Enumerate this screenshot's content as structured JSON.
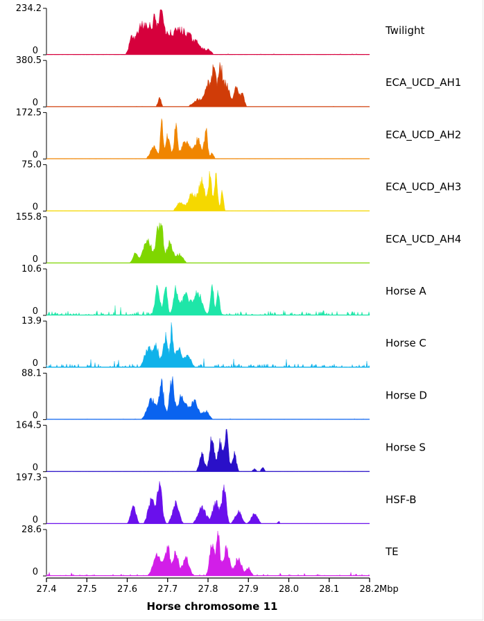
{
  "chart_data": {
    "type": "area",
    "title": "",
    "xlabel": "Horse chromosome 11",
    "x_unit": "Mbp",
    "xlim": [
      27.4,
      28.2
    ],
    "x_ticks": [
      27.4,
      27.5,
      27.6,
      27.7,
      27.8,
      27.9,
      28.0,
      28.1,
      28.2
    ],
    "x_tick_labels": [
      "27.4",
      "27.5",
      "27.6",
      "27.7",
      "27.8",
      "27.9",
      "28.0",
      "28.1",
      "28.2"
    ],
    "tracks": [
      {
        "name": "Twilight",
        "ymax_label": "234.2",
        "ymin_label": "0",
        "ymax": 234.2,
        "color": "#d6003c",
        "peaks": [
          [
            27.61,
            0.006,
            0.35
          ],
          [
            27.63,
            0.01,
            0.5
          ],
          [
            27.65,
            0.012,
            0.6
          ],
          [
            27.67,
            0.008,
            0.7
          ],
          [
            27.685,
            0.005,
            0.98
          ],
          [
            27.7,
            0.01,
            0.45
          ],
          [
            27.725,
            0.012,
            0.55
          ],
          [
            27.75,
            0.012,
            0.45
          ],
          [
            27.775,
            0.01,
            0.25
          ],
          [
            27.8,
            0.008,
            0.12
          ]
        ],
        "noise": 0.01
      },
      {
        "name": "ECA_UCD_AH1",
        "ymax_label": "380.5",
        "ymin_label": "0",
        "ymax": 380.5,
        "color": "#d03c08",
        "peaks": [
          [
            27.68,
            0.004,
            0.22
          ],
          [
            27.775,
            0.012,
            0.18
          ],
          [
            27.8,
            0.008,
            0.55
          ],
          [
            27.815,
            0.005,
            0.85
          ],
          [
            27.83,
            0.005,
            0.98
          ],
          [
            27.845,
            0.008,
            0.55
          ],
          [
            27.87,
            0.006,
            0.45
          ],
          [
            27.885,
            0.005,
            0.3
          ],
          [
            28.085,
            0.004,
            0.03
          ]
        ],
        "noise": 0.006
      },
      {
        "name": "ECA_UCD_AH2",
        "ymax_label": "172.5",
        "ymin_label": "0",
        "ymax": 172.5,
        "color": "#f08500",
        "peaks": [
          [
            27.665,
            0.008,
            0.3
          ],
          [
            27.685,
            0.003,
            0.95
          ],
          [
            27.7,
            0.006,
            0.55
          ],
          [
            27.72,
            0.004,
            0.8
          ],
          [
            27.745,
            0.01,
            0.45
          ],
          [
            27.775,
            0.008,
            0.5
          ],
          [
            27.795,
            0.004,
            0.7
          ],
          [
            27.81,
            0.004,
            0.15
          ]
        ],
        "noise": 0.006
      },
      {
        "name": "ECA_UCD_AH3",
        "ymax_label": "75.0",
        "ymin_label": "0",
        "ymax": 75.0,
        "color": "#f5d800",
        "peaks": [
          [
            27.73,
            0.008,
            0.2
          ],
          [
            27.76,
            0.01,
            0.4
          ],
          [
            27.785,
            0.008,
            0.7
          ],
          [
            27.805,
            0.004,
            0.95
          ],
          [
            27.82,
            0.004,
            0.85
          ],
          [
            27.835,
            0.003,
            0.55
          ]
        ],
        "noise": 0.006
      },
      {
        "name": "ECA_UCD_AH4",
        "ymax_label": "155.8",
        "ymin_label": "0",
        "ymax": 155.8,
        "color": "#7fd600",
        "peaks": [
          [
            27.62,
            0.006,
            0.25
          ],
          [
            27.65,
            0.01,
            0.6
          ],
          [
            27.675,
            0.005,
            0.75
          ],
          [
            27.685,
            0.004,
            0.95
          ],
          [
            27.705,
            0.008,
            0.5
          ],
          [
            27.73,
            0.008,
            0.22
          ]
        ],
        "noise": 0.006
      },
      {
        "name": "Horse A",
        "ymax_label": "10.6",
        "ymin_label": "0",
        "ymax": 10.6,
        "color": "#1ee6a8",
        "peaks": [
          [
            27.675,
            0.006,
            0.7
          ],
          [
            27.695,
            0.004,
            0.8
          ],
          [
            27.72,
            0.006,
            0.65
          ],
          [
            27.745,
            0.01,
            0.5
          ],
          [
            27.775,
            0.01,
            0.55
          ],
          [
            27.81,
            0.004,
            0.75
          ],
          [
            27.825,
            0.004,
            0.55
          ]
        ],
        "noise": 0.09
      },
      {
        "name": "Horse C",
        "ymax_label": "13.9",
        "ymin_label": "0",
        "ymax": 13.9,
        "color": "#10b2ea",
        "peaks": [
          [
            27.65,
            0.008,
            0.45
          ],
          [
            27.67,
            0.008,
            0.55
          ],
          [
            27.695,
            0.006,
            0.75
          ],
          [
            27.71,
            0.003,
            0.95
          ],
          [
            27.725,
            0.008,
            0.5
          ],
          [
            27.75,
            0.008,
            0.3
          ]
        ],
        "noise": 0.08
      },
      {
        "name": "Horse D",
        "ymax_label": "88.1",
        "ymin_label": "0",
        "ymax": 88.1,
        "color": "#0a63ef",
        "peaks": [
          [
            27.66,
            0.01,
            0.5
          ],
          [
            27.685,
            0.006,
            0.85
          ],
          [
            27.71,
            0.006,
            0.95
          ],
          [
            27.735,
            0.01,
            0.6
          ],
          [
            27.765,
            0.01,
            0.45
          ],
          [
            27.795,
            0.008,
            0.2
          ]
        ],
        "noise": 0.01
      },
      {
        "name": "Horse S",
        "ymax_label": "164.5",
        "ymin_label": "0",
        "ymax": 164.5,
        "color": "#2a10c8",
        "peaks": [
          [
            27.785,
            0.006,
            0.45
          ],
          [
            27.81,
            0.006,
            0.85
          ],
          [
            27.83,
            0.005,
            0.8
          ],
          [
            27.845,
            0.005,
            0.95
          ],
          [
            27.865,
            0.005,
            0.45
          ],
          [
            27.915,
            0.004,
            0.07
          ],
          [
            27.935,
            0.004,
            0.1
          ]
        ],
        "noise": 0.006
      },
      {
        "name": "HSF-B",
        "ymax_label": "197.3",
        "ymin_label": "0",
        "ymax": 197.3,
        "color": "#6a10ec",
        "peaks": [
          [
            27.615,
            0.006,
            0.5
          ],
          [
            27.66,
            0.008,
            0.6
          ],
          [
            27.68,
            0.006,
            0.95
          ],
          [
            27.72,
            0.008,
            0.5
          ],
          [
            27.785,
            0.01,
            0.4
          ],
          [
            27.82,
            0.008,
            0.55
          ],
          [
            27.84,
            0.005,
            0.9
          ],
          [
            27.875,
            0.008,
            0.3
          ],
          [
            27.915,
            0.008,
            0.25
          ],
          [
            27.975,
            0.003,
            0.06
          ]
        ],
        "noise": 0.006
      },
      {
        "name": "TE",
        "ymax_label": "28.6",
        "ymin_label": "0",
        "ymax": 28.6,
        "color": "#d21ee8",
        "peaks": [
          [
            27.675,
            0.01,
            0.55
          ],
          [
            27.7,
            0.006,
            0.7
          ],
          [
            27.72,
            0.006,
            0.6
          ],
          [
            27.745,
            0.008,
            0.45
          ],
          [
            27.81,
            0.006,
            0.8
          ],
          [
            27.825,
            0.004,
            0.98
          ],
          [
            27.845,
            0.008,
            0.65
          ],
          [
            27.875,
            0.008,
            0.45
          ],
          [
            27.9,
            0.006,
            0.2
          ]
        ],
        "noise": 0.04
      }
    ]
  }
}
